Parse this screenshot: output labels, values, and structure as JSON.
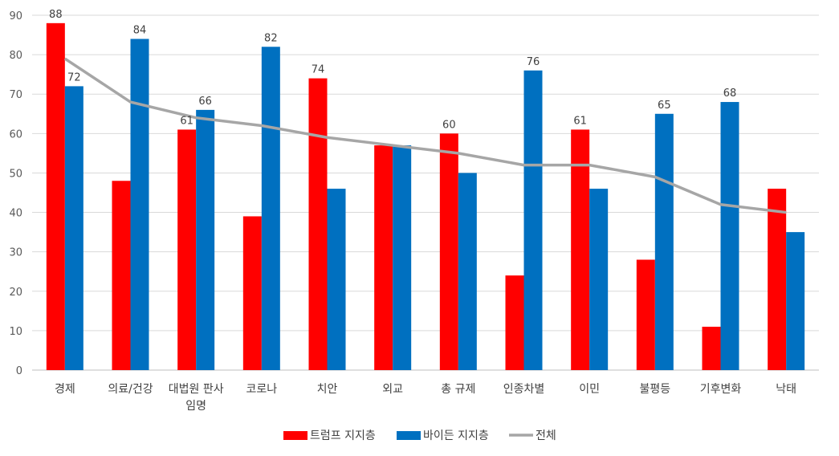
{
  "chart_data": {
    "type": "bar",
    "categories": [
      [
        "경제"
      ],
      [
        "의료/건강"
      ],
      [
        "대법원 판사",
        "임명"
      ],
      [
        "코로나"
      ],
      [
        "치안"
      ],
      [
        "외교"
      ],
      [
        "총 규제"
      ],
      [
        "인종차별"
      ],
      [
        "이민"
      ],
      [
        "불평등"
      ],
      [
        "기후변화"
      ],
      [
        "낙태"
      ]
    ],
    "series": [
      {
        "name": "트럼프 지지층",
        "kind": "bar",
        "color": "#ff0000",
        "values": [
          88,
          48,
          61,
          39,
          74,
          57,
          60,
          24,
          61,
          28,
          11,
          46
        ],
        "labeled": [
          true,
          false,
          true,
          false,
          true,
          false,
          true,
          false,
          true,
          false,
          false,
          false
        ]
      },
      {
        "name": "바이든 지지층",
        "kind": "bar",
        "color": "#0070c0",
        "values": [
          72,
          84,
          66,
          82,
          46,
          57,
          50,
          76,
          46,
          65,
          68,
          35
        ],
        "labeled": [
          true,
          true,
          true,
          true,
          false,
          false,
          false,
          true,
          false,
          true,
          true,
          false
        ]
      },
      {
        "name": "전체",
        "kind": "line",
        "color": "#a6a6a6",
        "values": [
          79,
          68,
          64,
          62,
          59,
          57,
          55,
          52,
          52,
          49,
          42,
          40
        ]
      }
    ],
    "ylim": [
      0,
      90
    ],
    "yticks": [
      0,
      10,
      20,
      30,
      40,
      50,
      60,
      70,
      80,
      90
    ],
    "grid": true,
    "legend": "bottom-center",
    "title": "",
    "xlabel": "",
    "ylabel": ""
  }
}
